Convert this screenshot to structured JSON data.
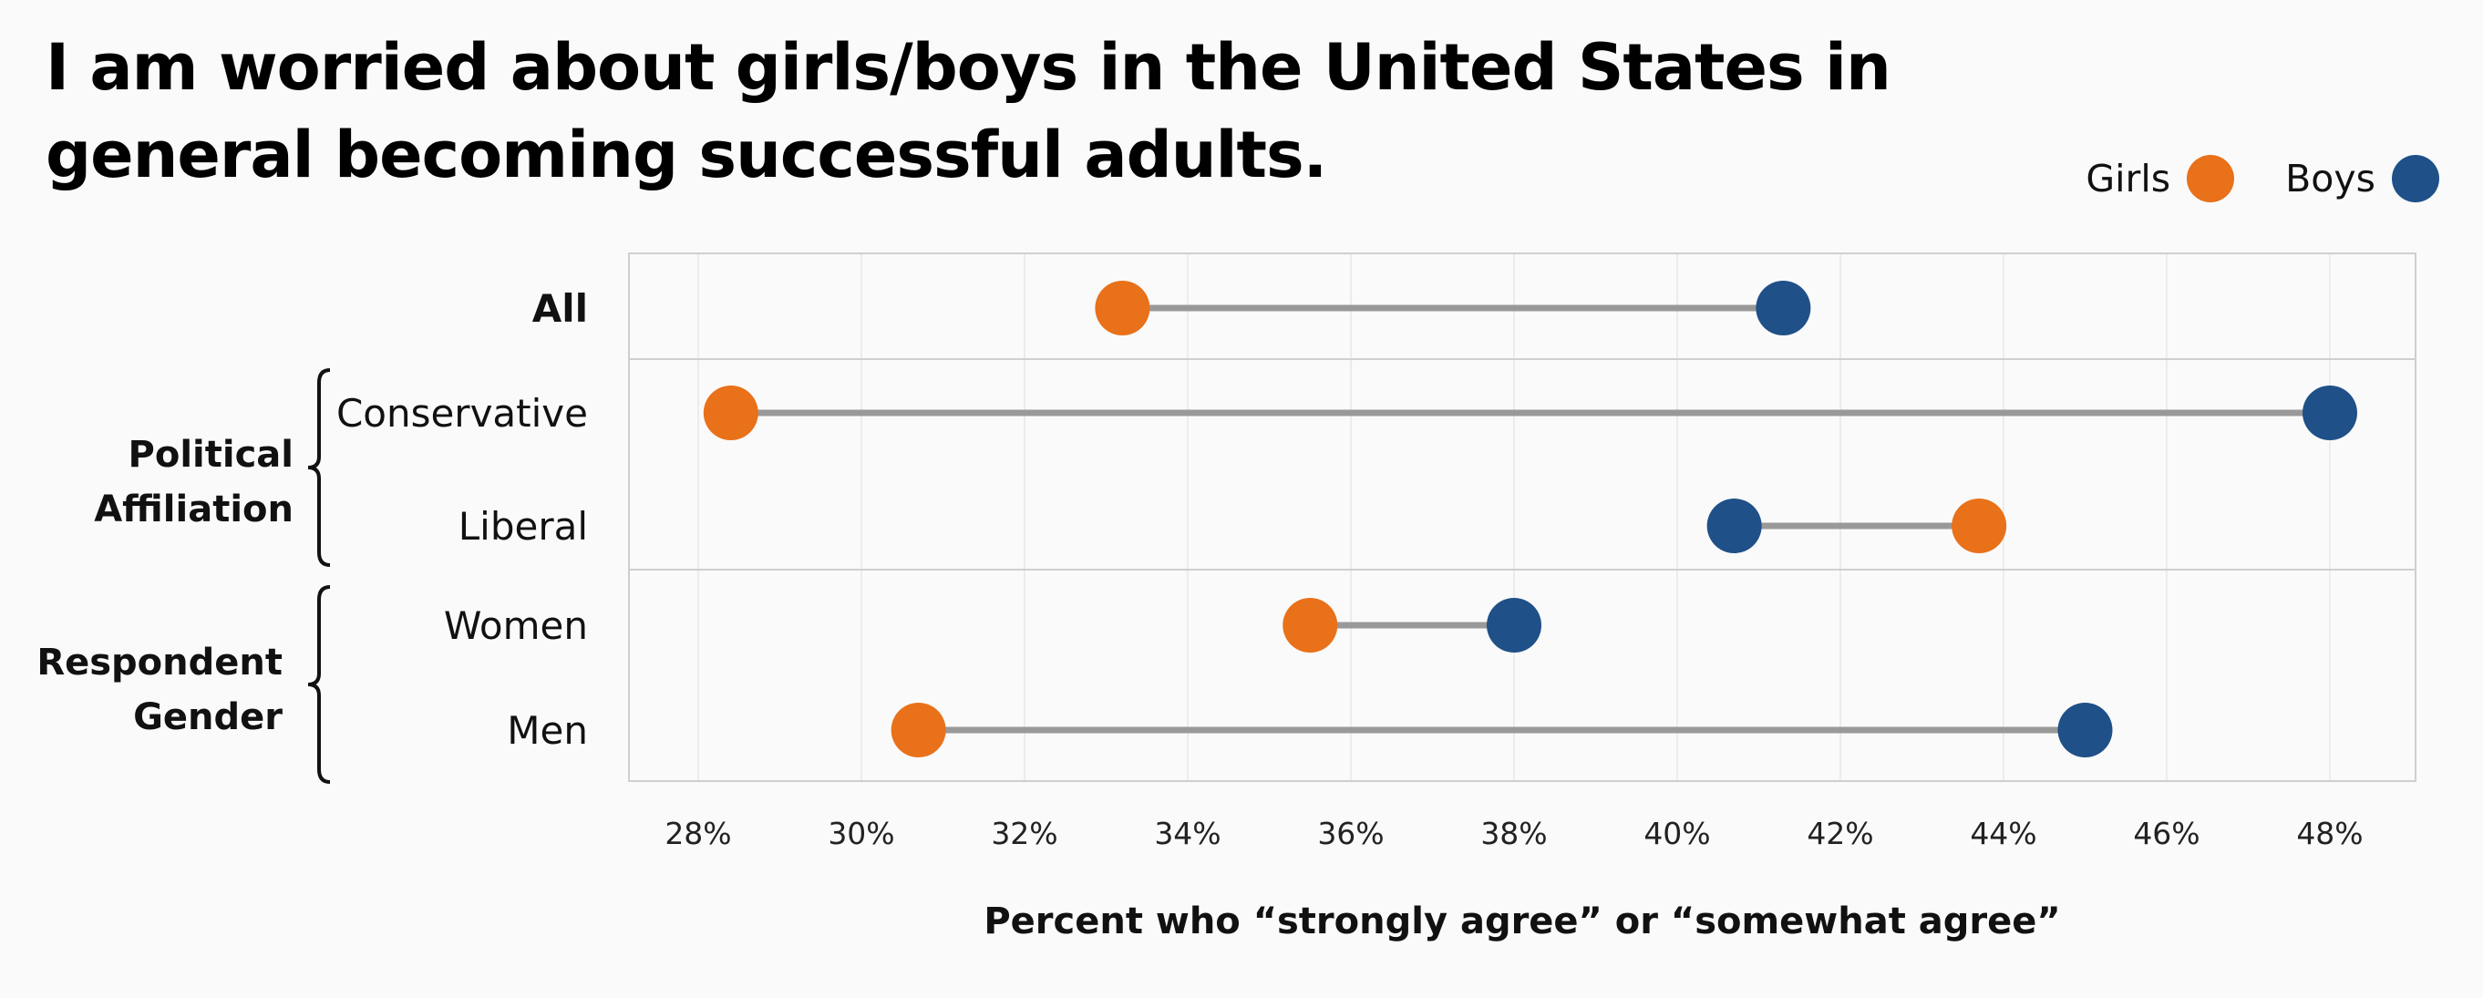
{
  "chart_data": {
    "type": "dot",
    "title": "I am worried about girls/boys in the United States in general becoming successful adults.",
    "xlabel": "Percent who “strongly agree” or “somewhat agree”",
    "ylabel": "",
    "xlim": [
      27,
      49
    ],
    "xticks": [
      28,
      30,
      32,
      34,
      36,
      38,
      40,
      42,
      44,
      46,
      48
    ],
    "tick_suffix": "%",
    "grid": true,
    "legend_position": "top-right",
    "categories": [
      "All",
      "Conservative",
      "Liberal",
      "Women",
      "Men"
    ],
    "groups": [
      {
        "label": "",
        "members": [
          "All"
        ]
      },
      {
        "label": "Political Affiliation",
        "lines": [
          "Political",
          "Affiliation"
        ],
        "members": [
          "Conservative",
          "Liberal"
        ]
      },
      {
        "label": "Respondent Gender",
        "lines": [
          "Respondent",
          "Gender"
        ],
        "members": [
          "Women",
          "Men"
        ]
      }
    ],
    "series": [
      {
        "name": "Girls",
        "color": "#E8711A",
        "values": [
          33.2,
          28.4,
          43.7,
          35.5,
          30.7
        ]
      },
      {
        "name": "Boys",
        "color": "#1F5088",
        "values": [
          41.3,
          48.0,
          40.7,
          38.0,
          45.0
        ]
      }
    ],
    "connector_color": "#999999"
  }
}
